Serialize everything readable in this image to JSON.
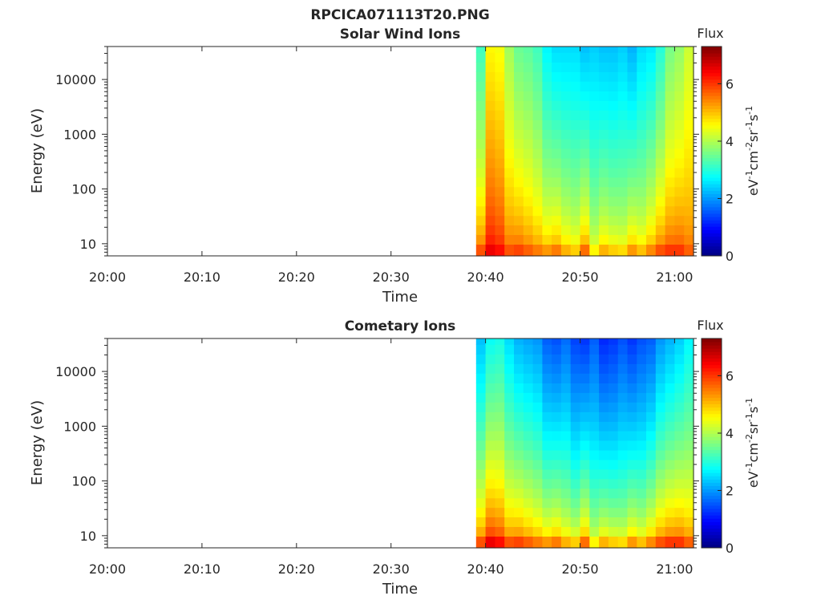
{
  "figure": {
    "title": "RPCICA071113T20.PNG",
    "background": "#ffffff"
  },
  "chart_data": [
    {
      "type": "heatmap",
      "title": "Solar Wind Ions",
      "xlabel": "Time",
      "ylabel": "Energy (eV)",
      "x_ticks": [
        "20:00",
        "20:10",
        "20:20",
        "20:30",
        "20:40",
        "20:50",
        "21:00"
      ],
      "x_range_minutes": [
        "20:00",
        "21:02"
      ],
      "y_scale": "log",
      "y_range": [
        6,
        40000
      ],
      "y_ticks": [
        "10",
        "100",
        "1000",
        "10000"
      ],
      "colorbar": {
        "title": "Flux",
        "label_base": "eV",
        "label_sup1": "-1",
        "label_mid": "cm",
        "label_sup2": "-2",
        "label_sr": "sr",
        "label_sup3": "-1",
        "label_s": "s",
        "label_sup4": "-1",
        "ticks": [
          "0",
          "2",
          "4",
          "6"
        ],
        "range": [
          0,
          7.3
        ],
        "colormap": "jet"
      },
      "data_start": "20:39",
      "time_columns": [
        "20:39",
        "20:40",
        "20:41",
        "20:42",
        "20:43",
        "20:44",
        "20:45",
        "20:46",
        "20:47",
        "20:48",
        "20:49",
        "20:50",
        "20:51",
        "20:52",
        "20:53",
        "20:54",
        "20:55",
        "20:56",
        "20:57",
        "20:58",
        "20:59",
        "21:00",
        "21:01"
      ],
      "energy_bins": [
        8,
        12,
        18,
        27,
        40,
        60,
        90,
        135,
        200,
        300,
        450,
        680,
        1000,
        1500,
        2250,
        3400,
        5000,
        7600,
        11400,
        17000,
        25600,
        38500
      ],
      "column_profile": [
        [
          5.8,
          3.2
        ],
        [
          6.5,
          4.6
        ],
        [
          6.3,
          4.5
        ],
        [
          5.8,
          3.9
        ],
        [
          5.9,
          3.5
        ],
        [
          5.7,
          3.4
        ],
        [
          5.5,
          3.2
        ],
        [
          5.3,
          2.7
        ],
        [
          5.5,
          2.5
        ],
        [
          5.1,
          2.5
        ],
        [
          4.9,
          2.5
        ],
        [
          5.6,
          2.3
        ],
        [
          4.6,
          2.4
        ],
        [
          5.1,
          2.3
        ],
        [
          4.9,
          2.3
        ],
        [
          4.8,
          2.4
        ],
        [
          5.3,
          2.2
        ],
        [
          5.0,
          2.5
        ],
        [
          5.4,
          2.6
        ],
        [
          5.8,
          3.0
        ],
        [
          6.0,
          3.6
        ],
        [
          6.0,
          3.8
        ],
        [
          5.7,
          4.2
        ]
      ]
    },
    {
      "type": "heatmap",
      "title": "Cometary Ions",
      "xlabel": "Time",
      "ylabel": "Energy (eV)",
      "x_ticks": [
        "20:00",
        "20:10",
        "20:20",
        "20:30",
        "20:40",
        "20:50",
        "21:00"
      ],
      "x_range_minutes": [
        "20:00",
        "21:02"
      ],
      "y_scale": "log",
      "y_range": [
        6,
        40000
      ],
      "y_ticks": [
        "10",
        "100",
        "1000",
        "10000"
      ],
      "colorbar": {
        "title": "Flux",
        "label_base": "eV",
        "label_sup1": "-1",
        "label_mid": "cm",
        "label_sup2": "-2",
        "label_sr": "sr",
        "label_sup3": "-1",
        "label_s": "s",
        "label_sup4": "-1",
        "ticks": [
          "0",
          "2",
          "4",
          "6"
        ],
        "range": [
          0,
          7.3
        ],
        "colormap": "jet"
      },
      "data_start": "20:39",
      "time_columns": [
        "20:39",
        "20:40",
        "20:41",
        "20:42",
        "20:43",
        "20:44",
        "20:45",
        "20:46",
        "20:47",
        "20:48",
        "20:49",
        "20:50",
        "20:51",
        "20:52",
        "20:53",
        "20:54",
        "20:55",
        "20:56",
        "20:57",
        "20:58",
        "20:59",
        "21:00",
        "21:01"
      ],
      "energy_bins": [
        8,
        12,
        18,
        27,
        40,
        60,
        90,
        135,
        200,
        300,
        450,
        680,
        1000,
        1500,
        2250,
        3400,
        5000,
        7600,
        11400,
        17000,
        25600,
        38500
      ],
      "column_profile": [
        [
          5.8,
          2.3
        ],
        [
          6.5,
          2.8
        ],
        [
          6.3,
          2.9
        ],
        [
          5.8,
          2.5
        ],
        [
          5.9,
          2.2
        ],
        [
          5.7,
          2.1
        ],
        [
          5.5,
          2.0
        ],
        [
          5.3,
          1.6
        ],
        [
          5.5,
          1.5
        ],
        [
          5.1,
          1.7
        ],
        [
          4.9,
          1.4
        ],
        [
          5.6,
          1.3
        ],
        [
          4.6,
          1.6
        ],
        [
          5.1,
          1.2
        ],
        [
          4.9,
          1.3
        ],
        [
          4.8,
          1.5
        ],
        [
          5.3,
          1.3
        ],
        [
          5.0,
          1.5
        ],
        [
          5.4,
          1.6
        ],
        [
          5.8,
          2.0
        ],
        [
          6.0,
          2.2
        ],
        [
          6.0,
          2.4
        ],
        [
          5.7,
          2.7
        ]
      ]
    }
  ]
}
